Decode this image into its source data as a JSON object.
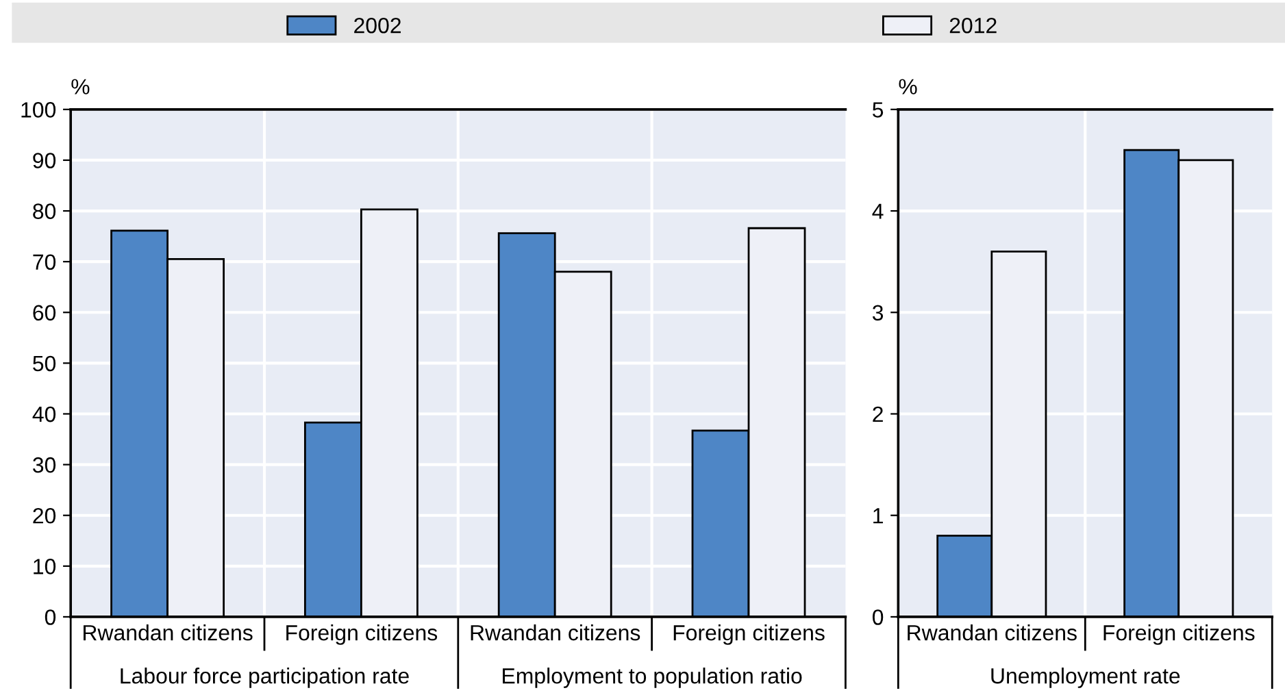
{
  "chart_data": [
    {
      "type": "bar",
      "ylabel": "%",
      "categories": [
        "Rwandan citizens",
        "Foreign citizens",
        "Rwandan citizens",
        "Foreign citizens"
      ],
      "series": [
        {
          "name": "2002",
          "color": "#4e86c6",
          "values": [
            76.1,
            38.3,
            75.6,
            36.7
          ]
        },
        {
          "name": "2012",
          "color": "#eef0f7",
          "values": [
            70.5,
            80.3,
            68.0,
            76.6
          ]
        }
      ],
      "annotations": [
        "Labour force participation rate",
        "Employment to population ratio"
      ],
      "ylim": [
        0,
        100
      ],
      "yticks": [
        0,
        10,
        20,
        30,
        40,
        50,
        60,
        70,
        80,
        90,
        100
      ],
      "grid": true,
      "legend": "top"
    },
    {
      "type": "bar",
      "ylabel": "%",
      "categories": [
        "Rwandan citizens",
        "Foreign citizens"
      ],
      "series": [
        {
          "color": "#4e86c6",
          "values": [
            0.8,
            4.6
          ]
        },
        {
          "color": "#eef0f7",
          "values": [
            3.6,
            4.5
          ]
        }
      ],
      "annotations": [
        "Unemployment rate"
      ],
      "ylim": [
        0,
        5
      ],
      "yticks": [
        0,
        1,
        2,
        3,
        4,
        5
      ],
      "grid": true
    }
  ]
}
